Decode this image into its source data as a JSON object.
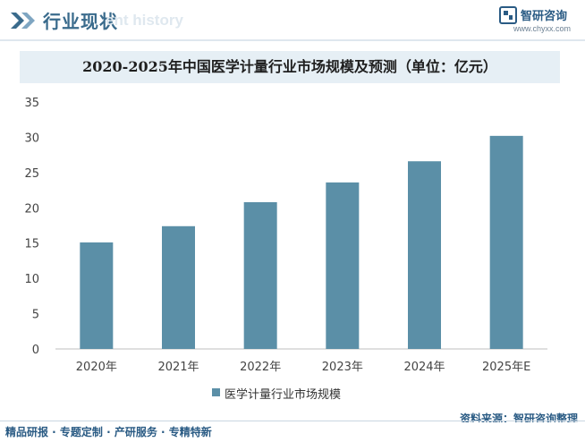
{
  "header": {
    "title": "行业现状",
    "ghost_text": "ent history"
  },
  "logo": {
    "name": "智研咨询",
    "url": "www.chyxx.com"
  },
  "chart_data": {
    "type": "bar",
    "title": "2020-2025年中国医学计量行业市场规模及预测（单位：亿元）",
    "categories": [
      "2020年",
      "2021年",
      "2022年",
      "2023年",
      "2024年",
      "2025年E"
    ],
    "series": [
      {
        "name": "医学计量行业市场规模",
        "values": [
          15.1,
          17.4,
          20.8,
          23.6,
          26.6,
          30.2
        ]
      }
    ],
    "ylim": [
      0,
      35
    ],
    "yticks": [
      0,
      5,
      10,
      15,
      20,
      25,
      30,
      35
    ],
    "xlabel": "",
    "ylabel": "",
    "grid": false,
    "legend": "bottom",
    "color": "#5b8fa7"
  },
  "source": "资料来源：智研咨询整理",
  "footer": "精品研报 · 专题定制 · 产研服务 · 专精特新"
}
